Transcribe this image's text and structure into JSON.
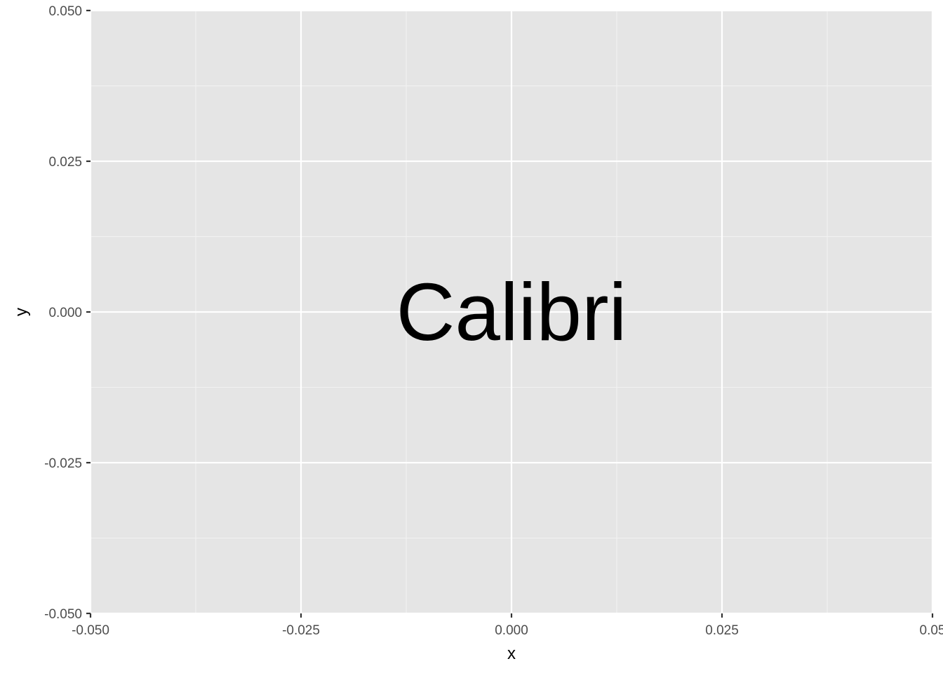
{
  "chart_data": {
    "type": "scatter",
    "title": "",
    "xlabel": "x",
    "ylabel": "y",
    "xlim": [
      -0.05,
      0.05
    ],
    "ylim": [
      -0.05,
      0.05
    ],
    "x_ticks": [
      -0.05,
      -0.025,
      0.0,
      0.025,
      0.05
    ],
    "y_ticks": [
      -0.05,
      -0.025,
      0.0,
      0.025,
      0.05
    ],
    "x_tick_labels": [
      "-0.050",
      "-0.025",
      "0.000",
      "0.025",
      "0.05"
    ],
    "y_tick_labels": [
      "-0.050",
      "-0.025",
      "0.000",
      "0.025",
      "0.050"
    ],
    "grid": true,
    "annotation": {
      "text": "Calibri",
      "x": 0.0,
      "y": 0.0
    },
    "colors": {
      "panel_background": "#e5e5e5",
      "grid_major": "#ffffff",
      "grid_minor": "#f2f2f2",
      "tick_text": "#4d4d4d",
      "axis_title": "#000000",
      "tick_mark": "#333333"
    }
  }
}
